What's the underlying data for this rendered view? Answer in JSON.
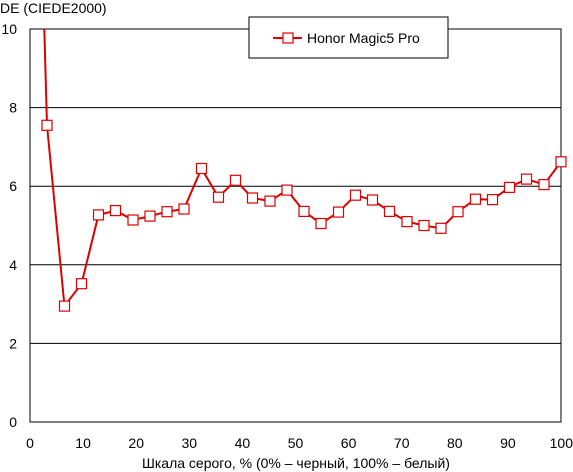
{
  "chart_data": {
    "type": "line",
    "ylabel": "DE (CIEDE2000)",
    "xlabel": "Шкала серого, % (0% – черный, 100% – белый)",
    "xlim": [
      0,
      100
    ],
    "ylim": [
      0,
      10
    ],
    "x_ticks": [
      "0",
      "10",
      "20",
      "30",
      "40",
      "50",
      "60",
      "70",
      "80",
      "90",
      "100"
    ],
    "y_ticks": [
      "0",
      "2",
      "4",
      "6",
      "8",
      "10"
    ],
    "grid": "horizontal",
    "legend_position": "top-right",
    "colors": {
      "series": "#dd0000",
      "marker_fill": "#ffffff",
      "grid": "#000000"
    },
    "series": [
      {
        "name": "Honor Magic5 Pro",
        "line_start": {
          "x": 2.7,
          "y": 10
        },
        "x": [
          3.2,
          6.5,
          9.7,
          12.9,
          16.1,
          19.4,
          22.6,
          25.8,
          29.0,
          32.3,
          35.5,
          38.7,
          41.9,
          45.2,
          48.4,
          51.6,
          54.8,
          58.1,
          61.3,
          64.5,
          67.7,
          71.0,
          74.2,
          77.4,
          80.6,
          83.9,
          87.1,
          90.3,
          93.5,
          96.8,
          100
        ],
        "values": [
          7.55,
          2.95,
          3.52,
          5.27,
          5.38,
          5.14,
          5.24,
          5.35,
          5.42,
          6.45,
          5.72,
          6.15,
          5.7,
          5.62,
          5.9,
          5.36,
          5.05,
          5.34,
          5.77,
          5.65,
          5.36,
          5.1,
          5.0,
          4.93,
          5.35,
          5.67,
          5.66,
          5.97,
          6.18,
          6.04,
          6.62
        ]
      }
    ]
  }
}
